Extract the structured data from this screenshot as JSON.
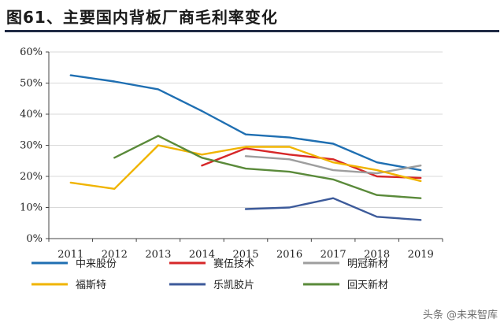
{
  "title": "图61、主要国内背板厂商毛利率变化",
  "watermark": "头条 @未来智库",
  "chart_data": {
    "type": "line",
    "categories": [
      "2011",
      "2012",
      "2013",
      "2014",
      "2015",
      "2016",
      "2017",
      "2018",
      "2019"
    ],
    "ylim": [
      0,
      60
    ],
    "yticks": [
      "0%",
      "10%",
      "20%",
      "30%",
      "40%",
      "50%",
      "60%"
    ],
    "legend_placement": "bottom",
    "series": [
      {
        "name": "中来股份",
        "color": "#1f6fb2",
        "values": [
          52.5,
          50.5,
          48,
          41,
          33.5,
          32.5,
          30.5,
          24.5,
          22
        ]
      },
      {
        "name": "赛伍技术",
        "color": "#d62728",
        "values": [
          null,
          null,
          null,
          23.5,
          29,
          27,
          25.5,
          20,
          19.5
        ]
      },
      {
        "name": "明冠新材",
        "color": "#9e9e9e",
        "values": [
          null,
          null,
          null,
          null,
          26.5,
          25.5,
          22,
          21,
          23.5
        ]
      },
      {
        "name": "福斯特",
        "color": "#f0b400",
        "values": [
          18,
          16,
          30,
          27,
          29.5,
          29.5,
          24.5,
          22,
          18.5
        ]
      },
      {
        "name": "乐凯胶片",
        "color": "#3c5a9a",
        "values": [
          null,
          null,
          null,
          null,
          9.5,
          10,
          13,
          7,
          6
        ]
      },
      {
        "name": "回天新材",
        "color": "#5a8a3a",
        "values": [
          null,
          26,
          33,
          26,
          22.5,
          21.5,
          19,
          14,
          13
        ]
      }
    ]
  }
}
